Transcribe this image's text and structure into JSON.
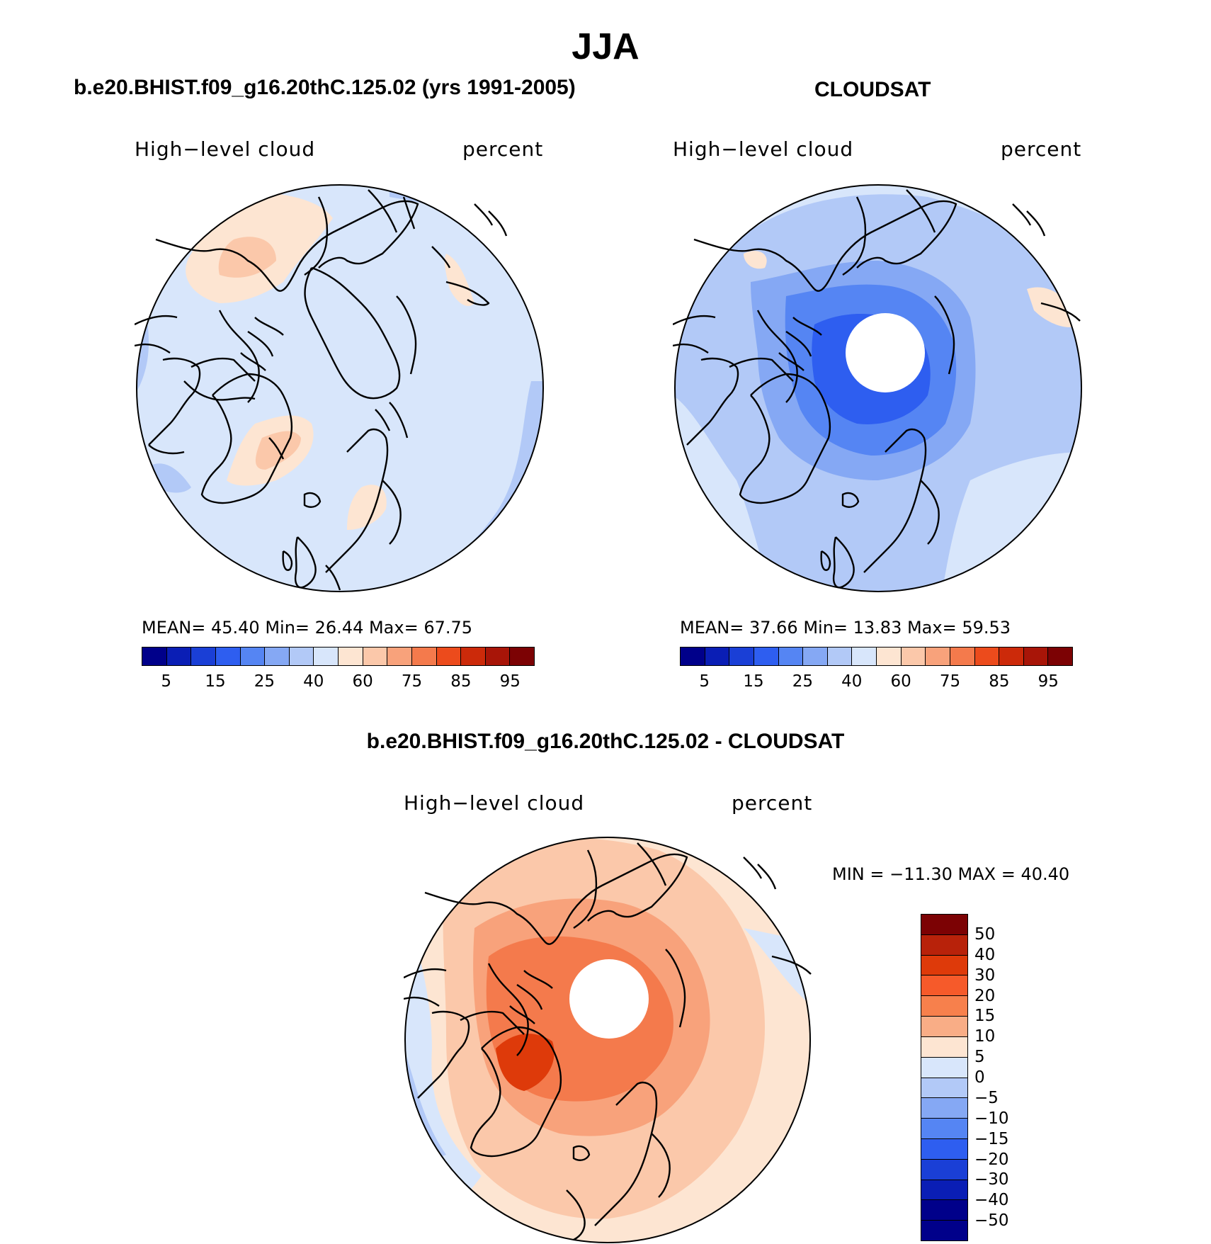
{
  "title": "JJA",
  "panels": [
    {
      "title": "b.e20.BHIST.f09_g16.20thC.125.02 (yrs 1991-2005)",
      "variable": "High−level cloud",
      "units": "percent",
      "stats": "MEAN=   45.40   Min=   26.44   Max=   67.75"
    },
    {
      "title": "CLOUDSAT",
      "variable": "High−level cloud",
      "units": "percent",
      "stats": "MEAN=   37.66   Min=   13.83   Max=   59.53"
    },
    {
      "title": "b.e20.BHIST.f09_g16.20thC.125.02 - CLOUDSAT",
      "variable": "High−level cloud",
      "units": "percent",
      "stats": "MIN = −11.30  MAX =   40.40"
    }
  ],
  "abs_colorbar": {
    "colors": [
      "#00008a",
      "#0a1eb5",
      "#1a3fd6",
      "#2e5ef0",
      "#5585f3",
      "#85a8f4",
      "#b2c9f7",
      "#d8e6fb",
      "#fde5d2",
      "#fbc8aa",
      "#f8a27b",
      "#f47a4c",
      "#ec4b1c",
      "#cc2a0a",
      "#a81508",
      "#7c0204"
    ],
    "labels": [
      "5",
      "15",
      "25",
      "40",
      "60",
      "75",
      "85",
      "95"
    ]
  },
  "diff_colorbar": {
    "colors": [
      "#7c0204",
      "#b8220a",
      "#de3a0a",
      "#f65a2a",
      "#f7804c",
      "#f9ad86",
      "#fde5d2",
      "#d8e6fb",
      "#b2c9f7",
      "#85a8f4",
      "#5585f3",
      "#2e5ef0",
      "#1a3fd6",
      "#0a1eb5",
      "#00008a"
    ],
    "labels": [
      "50",
      "40",
      "30",
      "20",
      "15",
      "10",
      "5",
      "0",
      "−5",
      "−10",
      "−15",
      "−20",
      "−30",
      "−40",
      "−50"
    ]
  }
}
